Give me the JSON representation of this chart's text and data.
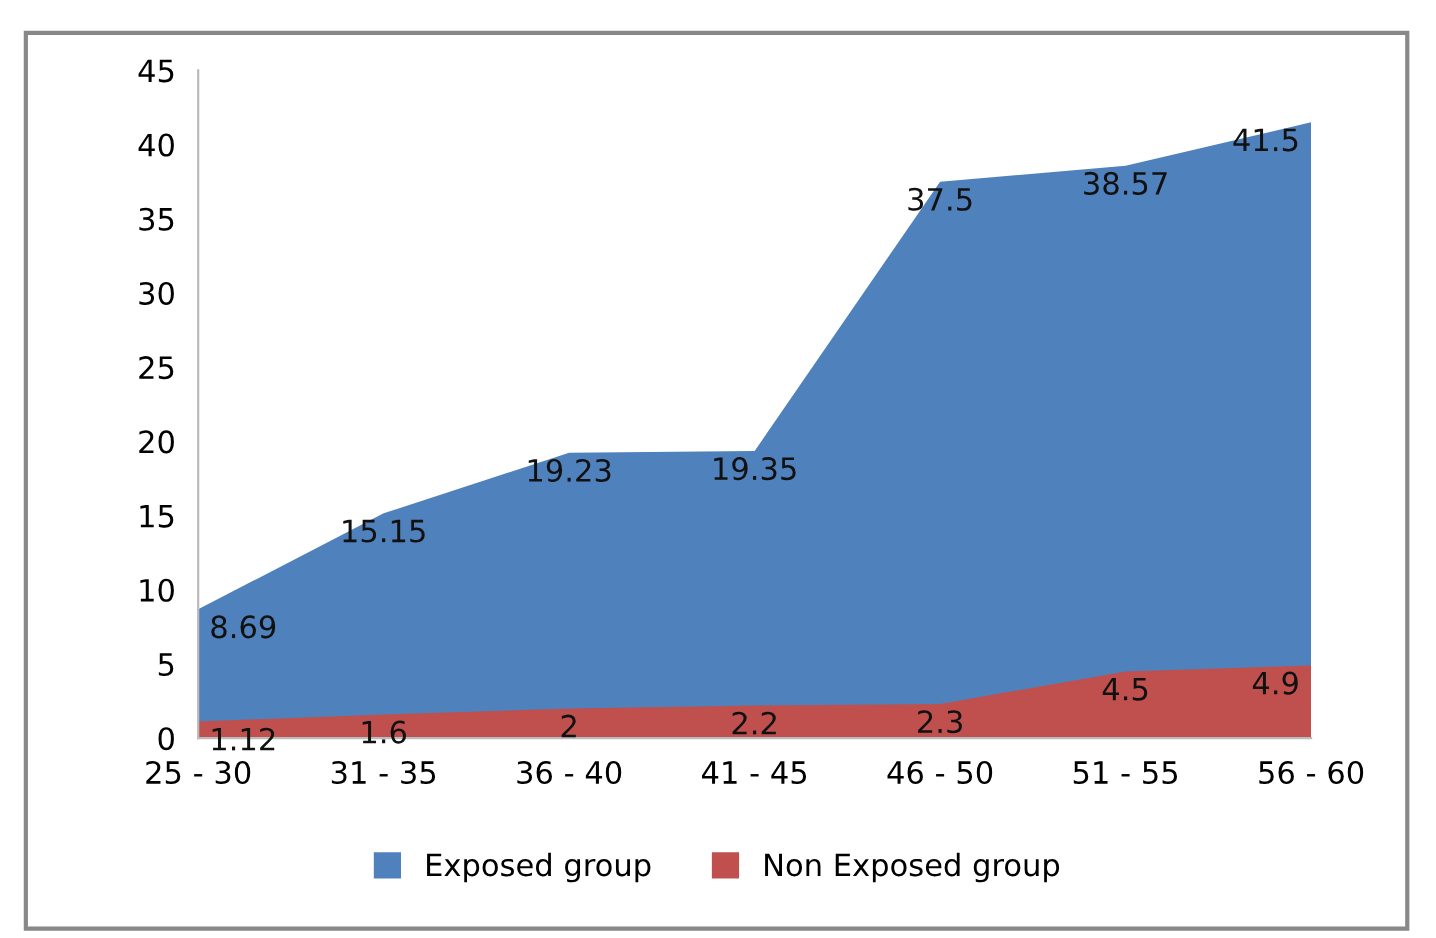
{
  "chart_data": {
    "type": "area",
    "categories": [
      "25 - 30",
      "31 - 35",
      "36 - 40",
      "41 - 45",
      "46 - 50",
      "51 - 55",
      "56 - 60"
    ],
    "series": [
      {
        "name": "Exposed group",
        "color": "#4f81bd",
        "values": [
          8.69,
          15.15,
          19.23,
          19.35,
          37.5,
          38.57,
          41.5
        ]
      },
      {
        "name": "Non Exposed group",
        "color": "#c0504d",
        "values": [
          1.12,
          1.6,
          2,
          2.2,
          2.3,
          4.5,
          4.9
        ]
      }
    ],
    "ylim": [
      0,
      45
    ],
    "yticks": [
      0,
      5,
      10,
      15,
      20,
      25,
      30,
      35,
      40,
      45
    ],
    "data_labels": true,
    "grid": false,
    "legend": "bottom"
  }
}
